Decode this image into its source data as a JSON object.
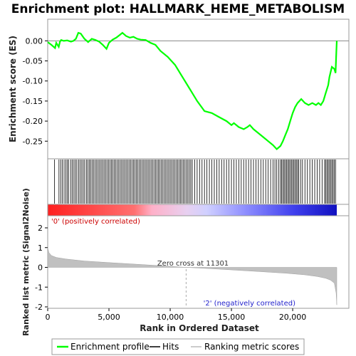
{
  "chart_data": {
    "type": "line",
    "title": "Enrichment plot: HALLMARK_HEME_METABOLISM",
    "es_panel": {
      "ylabel": "Enrichment score (ES)",
      "ylim": [
        -0.285,
        0.045
      ],
      "yticks": [
        "0.00",
        "-0.05",
        "-0.10",
        "-0.15",
        "-0.20",
        "-0.25"
      ],
      "ytick_values": [
        0.0,
        -0.05,
        -0.1,
        -0.15,
        -0.2,
        -0.25
      ],
      "color": "#00ff00",
      "series": [
        {
          "name": "Enrichment profile",
          "x": [
            0,
            300,
            600,
            700,
            900,
            1000,
            1100,
            1300,
            1600,
            1900,
            2100,
            2300,
            2500,
            2700,
            3000,
            3300,
            3600,
            3900,
            4200,
            4500,
            4800,
            5000,
            5300,
            5600,
            5900,
            6100,
            6400,
            6700,
            7000,
            7300,
            7600,
            8000,
            8400,
            8800,
            9200,
            9800,
            10400,
            11000,
            11600,
            12200,
            12800,
            13400,
            14000,
            14600,
            15000,
            15200,
            15600,
            16000,
            16300,
            16500,
            16800,
            17200,
            17600,
            18000,
            18400,
            18700,
            19000,
            19200,
            19400,
            19600,
            19800,
            20000,
            20200,
            20400,
            20700,
            21000,
            21300,
            21600,
            21900,
            22100,
            22300,
            22500,
            22700,
            22900,
            23000,
            23200,
            23400,
            23500,
            23550,
            23600
          ],
          "y": [
            -0.003,
            -0.01,
            -0.018,
            -0.005,
            -0.015,
            -0.002,
            0.002,
            0.0,
            0.001,
            -0.002,
            0.0,
            0.005,
            0.02,
            0.018,
            0.005,
            -0.003,
            0.005,
            0.002,
            -0.002,
            -0.01,
            -0.02,
            -0.005,
            0.003,
            0.008,
            0.015,
            0.02,
            0.012,
            0.008,
            0.01,
            0.005,
            0.003,
            0.002,
            -0.005,
            -0.01,
            -0.025,
            -0.04,
            -0.06,
            -0.09,
            -0.12,
            -0.15,
            -0.175,
            -0.18,
            -0.19,
            -0.2,
            -0.21,
            -0.205,
            -0.215,
            -0.22,
            -0.215,
            -0.21,
            -0.22,
            -0.23,
            -0.24,
            -0.25,
            -0.26,
            -0.27,
            -0.262,
            -0.25,
            -0.235,
            -0.22,
            -0.2,
            -0.18,
            -0.165,
            -0.155,
            -0.145,
            -0.155,
            -0.16,
            -0.155,
            -0.16,
            -0.155,
            -0.16,
            -0.15,
            -0.13,
            -0.11,
            -0.09,
            -0.065,
            -0.07,
            -0.08,
            -0.04,
            0.0
          ]
        }
      ]
    },
    "hits": [
      560,
      920,
      1060,
      1200,
      1340,
      1480,
      1600,
      1720,
      1880,
      2000,
      2140,
      2260,
      2380,
      2520,
      2640,
      2780,
      2900,
      3020,
      3160,
      3280,
      3400,
      3520,
      3640,
      3760,
      3880,
      4000,
      4120,
      4240,
      4360,
      4480,
      4600,
      4720,
      4840,
      4960,
      5080,
      5200,
      5320,
      5440,
      5560,
      5680,
      5800,
      5920,
      6040,
      6160,
      6280,
      6400,
      6520,
      6640,
      6760,
      6880,
      7000,
      7120,
      7240,
      7360,
      7480,
      7600,
      7720,
      7840,
      7960,
      8080,
      8200,
      8320,
      8440,
      8560,
      8680,
      8800,
      8920,
      9040,
      9160,
      9280,
      9400,
      9520,
      9640,
      9760,
      9880,
      10000,
      10120,
      10240,
      10360,
      10480,
      10600,
      10720,
      10840,
      10960,
      11080,
      11200,
      11320,
      11440,
      11560,
      11680,
      11800,
      12000,
      12200,
      12400,
      12600,
      12800,
      13000,
      13200,
      13400,
      13600,
      13800,
      14000,
      14200,
      14400,
      14600,
      14800,
      15000,
      15200,
      15400,
      15600,
      15800,
      16000,
      16200,
      16400,
      16600,
      16800,
      17000,
      17200,
      17400,
      17600,
      17800,
      18000,
      18200,
      18400,
      18550,
      18700,
      18850,
      19000,
      19100,
      19200,
      19300,
      19400,
      19500,
      19600,
      19700,
      19800,
      19900,
      20000,
      20100,
      20200,
      20300,
      20400,
      20500,
      20650,
      20800,
      21000,
      21200,
      21400,
      21600,
      21800,
      22000,
      22200,
      22400,
      22600,
      22700,
      22800,
      22900,
      23000,
      23100,
      23200,
      23300,
      23400,
      23500
    ],
    "metric_panel": {
      "ylabel": "Ranked list metric (Signal2Noise)",
      "ylim": [
        -2.0,
        2.0
      ],
      "yticks": [
        "2",
        "1",
        "0",
        "-1",
        "-2"
      ],
      "ytick_values": [
        2,
        1,
        0,
        -1,
        -2
      ],
      "metric_x": [
        0,
        100,
        300,
        700,
        1500,
        3000,
        5000,
        8000,
        11301,
        14000,
        17000,
        19500,
        21000,
        22000,
        22700,
        23100,
        23400,
        23550,
        23600
      ],
      "metric_y": [
        1.0,
        0.75,
        0.6,
        0.5,
        0.42,
        0.32,
        0.24,
        0.13,
        0.0,
        -0.09,
        -0.2,
        -0.3,
        -0.38,
        -0.46,
        -0.55,
        -0.65,
        -0.8,
        -1.3,
        -1.9
      ],
      "zero_cross_label": "Zero cross at 11301",
      "zero_cross": 11301,
      "pos_label": "'0' (positively correlated)",
      "neg_label": "'2' (negatively correlated)"
    },
    "xlabel": "Rank in Ordered Dataset",
    "xlim": [
      0,
      23600
    ],
    "xticks": [
      "0",
      "5,000",
      "10,000",
      "15,000",
      "20,000"
    ],
    "xtick_values": [
      0,
      5000,
      10000,
      15000,
      20000
    ],
    "legend": [
      {
        "label": "Enrichment profile",
        "color": "#00ff00"
      },
      {
        "label": "Hits",
        "color": "#000000"
      },
      {
        "label": "Ranking metric scores",
        "color": "#bbbbbb"
      }
    ]
  }
}
